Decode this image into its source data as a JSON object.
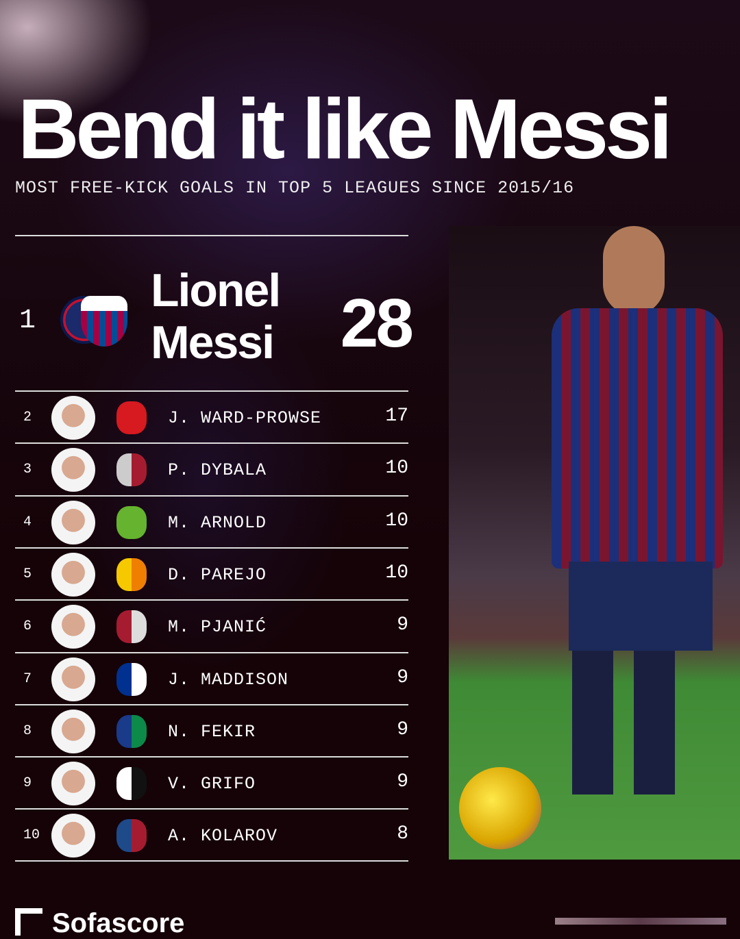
{
  "title": "Bend it like Messi",
  "subtitle": "MOST FREE-KICK GOALS IN TOP 5 LEAGUES SINCE 2015/16",
  "leader": {
    "rank": "1",
    "first_name": "Lionel",
    "last_name": "Messi",
    "goals": "28",
    "clubs": [
      "PSG",
      "FC Barcelona"
    ]
  },
  "rows": [
    {
      "rank": "2",
      "name": "J. WARD-PROWSE",
      "goals": "17",
      "club_colors": [
        "#d71920"
      ]
    },
    {
      "rank": "3",
      "name": "P. DYBALA",
      "goals": "10",
      "club_colors": [
        "#cccccc",
        "#a51c30"
      ]
    },
    {
      "rank": "4",
      "name": "M. ARNOLD",
      "goals": "10",
      "club_colors": [
        "#65b32e"
      ]
    },
    {
      "rank": "5",
      "name": "D. PAREJO",
      "goals": "10",
      "club_colors": [
        "#f5c800",
        "#ee7f00"
      ]
    },
    {
      "rank": "6",
      "name": "M. PJANIĆ",
      "goals": "9",
      "club_colors": [
        "#a51c30",
        "#dddddd"
      ]
    },
    {
      "rank": "7",
      "name": "J. MADDISON",
      "goals": "9",
      "club_colors": [
        "#003090",
        "#ffffff"
      ]
    },
    {
      "rank": "8",
      "name": "N. FEKIR",
      "goals": "9",
      "club_colors": [
        "#1a3a8a",
        "#0b8a4a"
      ]
    },
    {
      "rank": "9",
      "name": "V. GRIFO",
      "goals": "9",
      "club_colors": [
        "#ffffff",
        "#111111"
      ]
    },
    {
      "rank": "10",
      "name": "A. KOLAROV",
      "goals": "8",
      "club_colors": [
        "#1e4a8a",
        "#a51c30"
      ]
    }
  ],
  "brand": "Sofascore"
}
